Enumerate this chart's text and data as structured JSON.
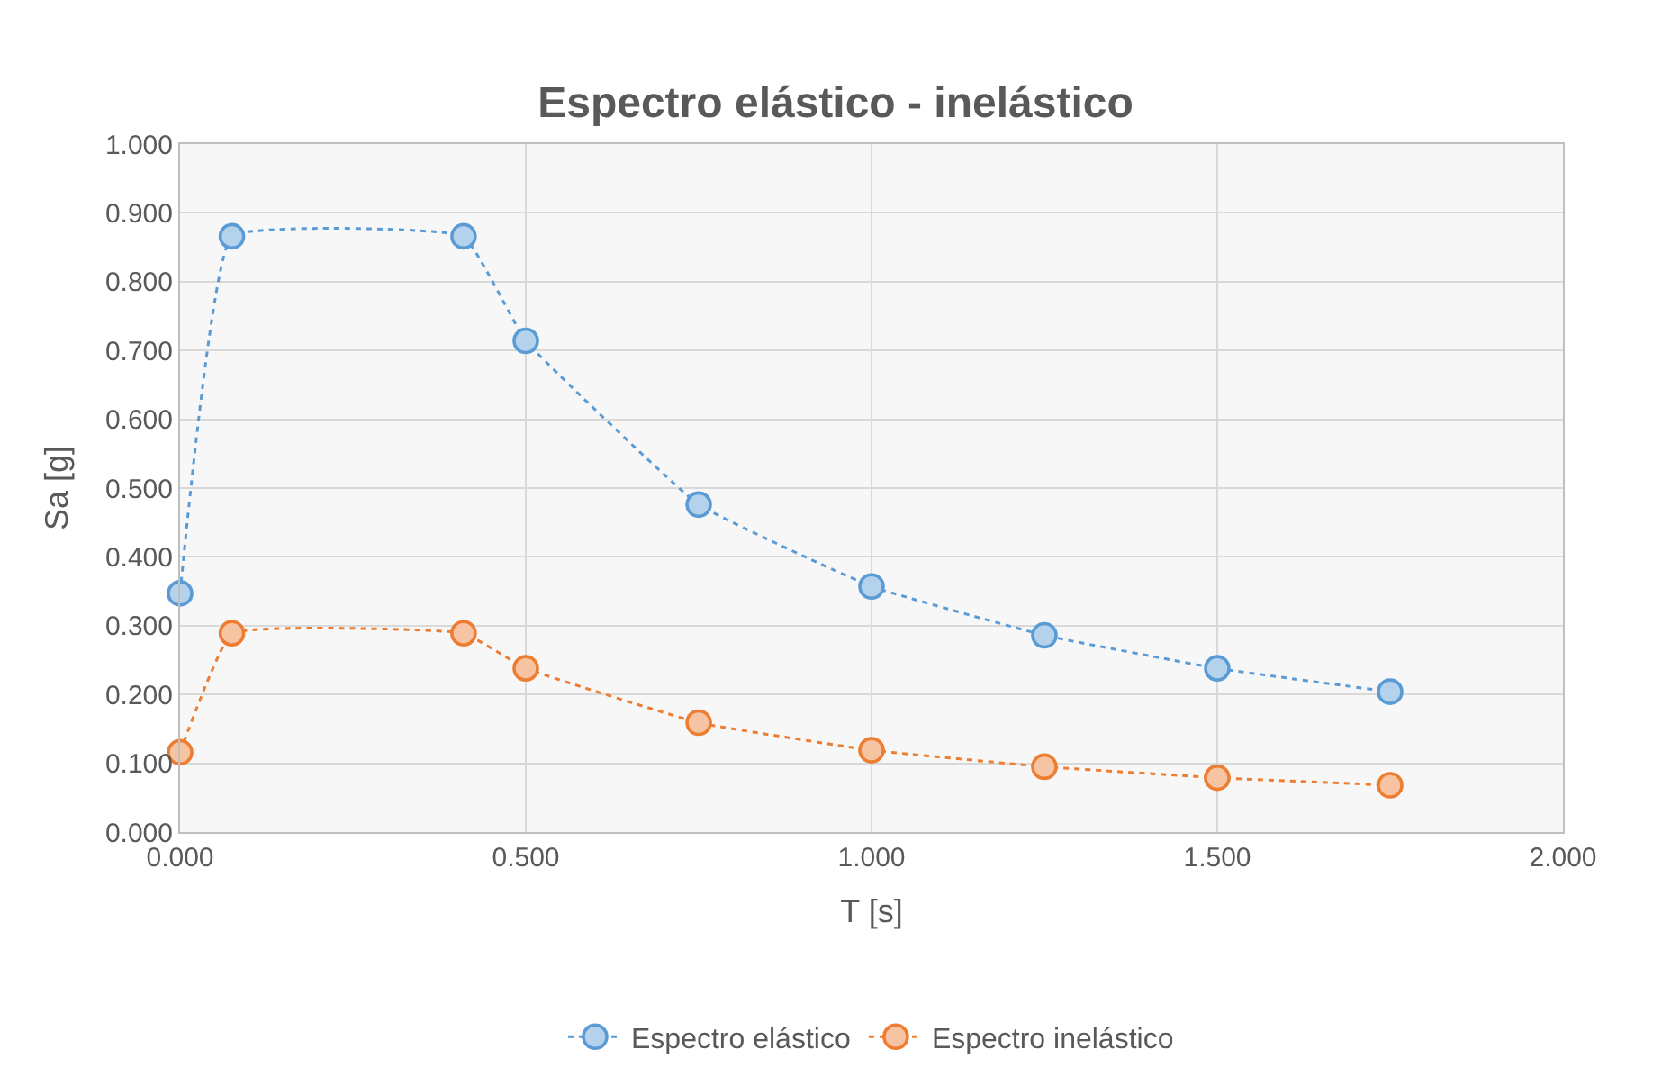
{
  "chart_data": {
    "type": "line",
    "title": "Espectro elástico - inelástico",
    "xlabel": "T [s]",
    "ylabel": "Sa [g]",
    "x": [
      0,
      0.075,
      0.41,
      0.5,
      0.75,
      1.0,
      1.25,
      1.5,
      1.75
    ],
    "series": [
      {
        "name": "Espectro elástico",
        "color": "#5b9bd5",
        "values": [
          0.347,
          0.866,
          0.866,
          0.714,
          0.476,
          0.357,
          0.286,
          0.238,
          0.204
        ]
      },
      {
        "name": "Espectro inelástico",
        "color": "#ed7d31",
        "values": [
          0.116,
          0.289,
          0.289,
          0.238,
          0.159,
          0.119,
          0.095,
          0.079,
          0.068
        ]
      }
    ],
    "xlim": [
      0,
      2
    ],
    "xticks": [
      {
        "value": 0,
        "label": "0.000"
      },
      {
        "value": 0.5,
        "label": "0.500"
      },
      {
        "value": 1,
        "label": "1.000"
      },
      {
        "value": 1.5,
        "label": "1.500"
      },
      {
        "value": 2,
        "label": "2.000"
      }
    ],
    "ylim": [
      0,
      1
    ],
    "yticks": [
      {
        "value": 0,
        "label": "0.000"
      },
      {
        "value": 0.1,
        "label": "0.100"
      },
      {
        "value": 0.2,
        "label": "0.200"
      },
      {
        "value": 0.3,
        "label": "0.300"
      },
      {
        "value": 0.4,
        "label": "0.400"
      },
      {
        "value": 0.5,
        "label": "0.500"
      },
      {
        "value": 0.6,
        "label": "0.600"
      },
      {
        "value": 0.7,
        "label": "0.700"
      },
      {
        "value": 0.8,
        "label": "0.800"
      },
      {
        "value": 0.9,
        "label": "0.900"
      },
      {
        "value": 1,
        "label": "1.000"
      }
    ],
    "grid": true,
    "legend": "bottom",
    "marker": "circle",
    "line_style": "dotted"
  }
}
